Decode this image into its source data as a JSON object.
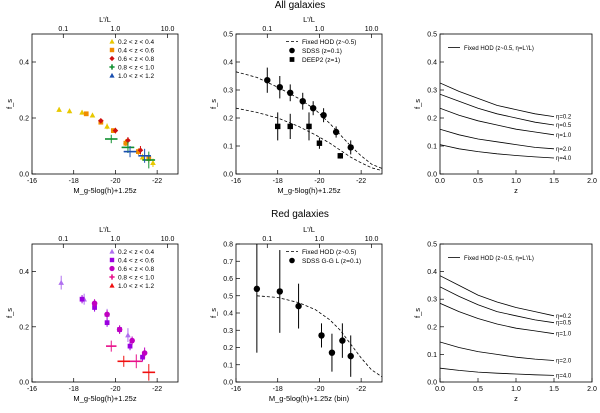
{
  "row_titles": [
    "All galaxies",
    "Red galaxies"
  ],
  "colors": {
    "z1": "#e8c800",
    "z2": "#f08c00",
    "z3": "#d01010",
    "z4": "#109030",
    "z5": "#1a4fb0",
    "r1": "#b070f0",
    "r2": "#9a00e0",
    "r3": "#c000c0",
    "r4": "#e8108a",
    "r5": "#f01010",
    "black": "#000000"
  },
  "chart_data": [
    {
      "id": "p1",
      "type": "scatter",
      "row": 0,
      "col": 0,
      "xlabel": "M_g-5log(h)+1.25z",
      "ylabel": "f_s",
      "top_label": "L'/L",
      "xlim": [
        -16,
        -23
      ],
      "ylim": [
        0,
        0.5
      ],
      "xticks": [
        -16,
        -18,
        -20,
        -22
      ],
      "yticks": [
        0.0,
        0.2,
        0.4
      ],
      "top_ticks": [
        0.1,
        1.0,
        10.0
      ],
      "legend": [
        "0.2 < z < 0.4",
        "0.4 < z < 0.6",
        "0.6 < z < 0.8",
        "0.8 < z < 1.0",
        "1.0 < z < 1.2"
      ],
      "series": [
        {
          "name": "0.2 < z < 0.4",
          "color": "z1",
          "marker": "tri",
          "points": [
            [
              -17.3,
              0.23,
              0,
              0.008
            ],
            [
              -17.8,
              0.225,
              0,
              0.008
            ],
            [
              -18.4,
              0.22,
              0,
              0.008
            ],
            [
              -18.9,
              0.21,
              0,
              0.008
            ],
            [
              -19.6,
              0.17,
              0,
              0.01
            ],
            [
              -20.5,
              0.115,
              0,
              0.01
            ],
            [
              -21.3,
              0.06,
              0,
              0.012
            ],
            [
              -21.8,
              0.04,
              0,
              0.015
            ]
          ]
        },
        {
          "name": "0.4 < z < 0.6",
          "color": "z2",
          "marker": "sq",
          "points": [
            [
              -18.6,
              0.215,
              0,
              0.008
            ],
            [
              -19.3,
              0.185,
              0,
              0.008
            ],
            [
              -19.9,
              0.155,
              0,
              0.008
            ],
            [
              -20.5,
              0.11,
              0,
              0.01
            ],
            [
              -21.1,
              0.08,
              0,
              0.012
            ],
            [
              -21.6,
              0.055,
              0,
              0.015
            ]
          ]
        },
        {
          "name": "0.6 < z < 0.8",
          "color": "z3",
          "marker": "dia",
          "points": [
            [
              -19.3,
              0.19,
              0,
              0.008
            ],
            [
              -20.0,
              0.155,
              0,
              0.01
            ],
            [
              -20.6,
              0.12,
              0,
              0.012
            ],
            [
              -21.2,
              0.085,
              0,
              0.015
            ]
          ]
        },
        {
          "name": "0.8 < z < 1.0",
          "color": "z4",
          "marker": "plus",
          "points": [
            [
              -19.8,
              0.125,
              0.3,
              0.015
            ],
            [
              -20.6,
              0.095,
              0.3,
              0.02
            ],
            [
              -21.6,
              0.05,
              0.3,
              0.03
            ]
          ]
        },
        {
          "name": "1.0 < z < 1.2",
          "color": "z5",
          "marker": "plus",
          "points": [
            [
              -20.7,
              0.08,
              0.3,
              0.02
            ],
            [
              -21.4,
              0.065,
              0.3,
              0.025
            ]
          ]
        }
      ]
    },
    {
      "id": "p2",
      "type": "scatter",
      "row": 0,
      "col": 1,
      "xlabel": "M_g-5log(h)+1.25z",
      "ylabel": "f_s",
      "top_label": "L'/L",
      "xlim": [
        -16,
        -23
      ],
      "ylim": [
        0,
        0.5
      ],
      "xticks": [
        -16,
        -18,
        -20,
        -22
      ],
      "yticks": [
        0.0,
        0.1,
        0.2,
        0.3,
        0.4,
        0.5
      ],
      "top_ticks": [
        0.1,
        1.0,
        10.0
      ],
      "legend": [
        "Fixed HOD (z~0.5)",
        "SDSS (z=0.1)",
        "DEEP2 (z=1)"
      ],
      "curves": [
        {
          "name": "Fixed HOD (z~0.5)",
          "dashed": true,
          "x": [
            -16.0,
            -17.0,
            -18.0,
            -19.0,
            -19.8,
            -20.5,
            -21.0,
            -21.5,
            -22.0,
            -22.5,
            -23.0
          ],
          "y": [
            0.365,
            0.345,
            0.31,
            0.27,
            0.23,
            0.18,
            0.14,
            0.1,
            0.065,
            0.035,
            0.02
          ]
        },
        {
          "name": "",
          "dashed": true,
          "x": [
            -16.0,
            -17.0,
            -18.0,
            -19.0,
            -19.8,
            -20.5,
            -21.0,
            -21.5,
            -22.0,
            -22.5,
            -23.0
          ],
          "y": [
            0.235,
            0.22,
            0.2,
            0.17,
            0.14,
            0.11,
            0.085,
            0.06,
            0.04,
            0.022,
            0.012
          ]
        }
      ],
      "series": [
        {
          "name": "SDSS (z=0.1)",
          "color": "black",
          "marker": "circ",
          "points": [
            [
              -17.5,
              0.335,
              0,
              0.045
            ],
            [
              -18.1,
              0.31,
              0,
              0.04
            ],
            [
              -18.6,
              0.29,
              0,
              0.03
            ],
            [
              -19.2,
              0.26,
              0,
              0.03
            ],
            [
              -19.7,
              0.235,
              0,
              0.025
            ],
            [
              -20.2,
              0.21,
              0,
              0.025
            ],
            [
              -20.8,
              0.15,
              0,
              0.02
            ],
            [
              -21.5,
              0.095,
              0,
              0.025
            ]
          ]
        },
        {
          "name": "DEEP2 (z=1)",
          "color": "black",
          "marker": "sq",
          "points": [
            [
              -18.0,
              0.17,
              0,
              0.05
            ],
            [
              -18.6,
              0.17,
              0,
              0.045
            ],
            [
              -19.5,
              0.17,
              0,
              0.05
            ],
            [
              -20.0,
              0.11,
              0,
              0.02
            ],
            [
              -21.0,
              0.065,
              0,
              0.01
            ]
          ]
        }
      ]
    },
    {
      "id": "p3",
      "type": "line",
      "row": 0,
      "col": 2,
      "xlabel": "z",
      "ylabel": "f_s",
      "xlim": [
        0,
        2.0
      ],
      "ylim": [
        0,
        0.5
      ],
      "xticks": [
        0.0,
        0.5,
        1.0,
        1.5,
        2.0
      ],
      "yticks": [
        0.0,
        0.1,
        0.2,
        0.3,
        0.4,
        0.5
      ],
      "legend": [
        "Fixed HOD (z~0.5, η=L'/L)"
      ],
      "curve_x": [
        0.0,
        0.25,
        0.5,
        0.75,
        1.0,
        1.25,
        1.5
      ],
      "curves": [
        {
          "label": "η=0.2",
          "y": [
            0.325,
            0.295,
            0.27,
            0.245,
            0.23,
            0.215,
            0.205
          ]
        },
        {
          "label": "η=0.5",
          "y": [
            0.285,
            0.26,
            0.235,
            0.215,
            0.2,
            0.185,
            0.175
          ]
        },
        {
          "label": "η=1.0",
          "y": [
            0.235,
            0.21,
            0.19,
            0.175,
            0.16,
            0.15,
            0.14
          ]
        },
        {
          "label": "η=2.0",
          "y": [
            0.16,
            0.14,
            0.125,
            0.115,
            0.105,
            0.095,
            0.09
          ]
        },
        {
          "label": "η=4.0",
          "y": [
            0.105,
            0.09,
            0.08,
            0.072,
            0.066,
            0.061,
            0.057
          ]
        }
      ]
    },
    {
      "id": "p4",
      "type": "scatter",
      "row": 1,
      "col": 0,
      "xlabel": "M_g-5log(h)+1.25z",
      "ylabel": "f_s",
      "top_label": "L'/L",
      "xlim": [
        -16,
        -23
      ],
      "ylim": [
        0,
        0.5
      ],
      "xticks": [
        -16,
        -18,
        -20,
        -22
      ],
      "yticks": [
        0.0,
        0.2,
        0.4
      ],
      "top_ticks": [
        0.1,
        1.0,
        10.0
      ],
      "legend": [
        "0.2 < z < 0.4",
        "0.4 < z < 0.6",
        "0.6 < z < 0.8",
        "0.8 < z < 1.0",
        "1.0 < z < 1.2"
      ],
      "series": [
        {
          "name": "0.2 < z < 0.4",
          "color": "r1",
          "marker": "tri",
          "points": [
            [
              -17.4,
              0.36,
              0,
              0.025
            ],
            [
              -18.5,
              0.3,
              0,
              0.02
            ],
            [
              -19.6,
              0.245,
              0,
              0.02
            ],
            [
              -20.6,
              0.17,
              0,
              0.025
            ]
          ]
        },
        {
          "name": "0.4 < z < 0.6",
          "color": "r2",
          "marker": "sq",
          "points": [
            [
              -18.4,
              0.3,
              0,
              0.015
            ],
            [
              -19.0,
              0.27,
              0,
              0.015
            ],
            [
              -19.6,
              0.215,
              0,
              0.015
            ],
            [
              -20.2,
              0.19,
              0,
              0.015
            ],
            [
              -20.7,
              0.13,
              0,
              0.015
            ],
            [
              -21.3,
              0.09,
              0,
              0.015
            ]
          ]
        },
        {
          "name": "0.6 < z < 0.8",
          "color": "r3",
          "marker": "circ",
          "points": [
            [
              -19.0,
              0.285,
              0,
              0.015
            ],
            [
              -19.6,
              0.245,
              0,
              0.015
            ],
            [
              -20.2,
              0.19,
              0,
              0.015
            ],
            [
              -20.8,
              0.15,
              0,
              0.015
            ],
            [
              -21.4,
              0.105,
              0,
              0.02
            ]
          ]
        },
        {
          "name": "0.8 < z < 1.0",
          "color": "r4",
          "marker": "plus",
          "points": [
            [
              -19.8,
              0.13,
              0.25,
              0.02
            ],
            [
              -21.0,
              0.075,
              0.3,
              0.025
            ]
          ]
        },
        {
          "name": "1.0 < z < 1.2",
          "color": "r5",
          "marker": "plus",
          "points": [
            [
              -20.4,
              0.075,
              0.3,
              0.02
            ],
            [
              -21.6,
              0.035,
              0.3,
              0.03
            ]
          ]
        }
      ]
    },
    {
      "id": "p5",
      "type": "scatter",
      "row": 1,
      "col": 1,
      "xlabel": "M_g-5log(h)+1.25z (bin)",
      "ylabel": "f_s",
      "top_label": "L'/L",
      "xlim": [
        -16,
        -23
      ],
      "ylim": [
        0,
        0.8
      ],
      "xticks": [
        -16,
        -18,
        -20,
        -22
      ],
      "yticks": [
        0.0,
        0.1,
        0.2,
        0.3,
        0.4,
        0.5,
        0.6,
        0.7,
        0.8
      ],
      "top_ticks": [
        0.1,
        1.0,
        10.0
      ],
      "legend": [
        "Fixed HOD (z~0.5)",
        "SDSS G-G L (z=0.1)"
      ],
      "curves": [
        {
          "name": "Fixed HOD (z~0.5)",
          "dashed": true,
          "x": [
            -17.0,
            -18.0,
            -19.0,
            -19.8,
            -20.5,
            -21.0,
            -21.5,
            -22.0,
            -22.5,
            -23.0
          ],
          "y": [
            0.5,
            0.49,
            0.46,
            0.42,
            0.36,
            0.3,
            0.22,
            0.14,
            0.07,
            0.03
          ]
        }
      ],
      "series": [
        {
          "name": "SDSS G-G L (z=0.1)",
          "color": "black",
          "marker": "circ",
          "points": [
            [
              -17.0,
              0.54,
              0,
              0.37
            ],
            [
              -18.1,
              0.525,
              0,
              0.24
            ],
            [
              -19.0,
              0.44,
              0,
              0.13
            ],
            [
              -20.1,
              0.27,
              0,
              0.07
            ],
            [
              -20.6,
              0.17,
              0,
              0.11
            ],
            [
              -21.1,
              0.24,
              0,
              0.1
            ],
            [
              -21.5,
              0.15,
              0,
              0.12
            ]
          ]
        }
      ]
    },
    {
      "id": "p6",
      "type": "line",
      "row": 1,
      "col": 2,
      "xlabel": "z",
      "ylabel": "f_s",
      "xlim": [
        0,
        2.0
      ],
      "ylim": [
        0,
        0.5
      ],
      "xticks": [
        0.0,
        0.5,
        1.0,
        1.5,
        2.0
      ],
      "yticks": [
        0.0,
        0.1,
        0.2,
        0.3,
        0.4,
        0.5
      ],
      "legend": [
        "Fixed HOD (z~0.5, η=L'/L)"
      ],
      "curve_x": [
        0.0,
        0.25,
        0.5,
        0.75,
        1.0,
        1.25,
        1.5
      ],
      "curves": [
        {
          "label": "η=0.2",
          "y": [
            0.385,
            0.35,
            0.315,
            0.29,
            0.27,
            0.255,
            0.24
          ]
        },
        {
          "label": "η=0.5",
          "y": [
            0.345,
            0.31,
            0.28,
            0.255,
            0.24,
            0.225,
            0.215
          ]
        },
        {
          "label": "η=1.0",
          "y": [
            0.285,
            0.255,
            0.23,
            0.21,
            0.195,
            0.185,
            0.175
          ]
        },
        {
          "label": "η=2.0",
          "y": [
            0.145,
            0.125,
            0.11,
            0.1,
            0.09,
            0.083,
            0.078
          ]
        },
        {
          "label": "η=4.0",
          "y": [
            0.05,
            0.042,
            0.036,
            0.032,
            0.029,
            0.026,
            0.024
          ]
        }
      ]
    }
  ]
}
